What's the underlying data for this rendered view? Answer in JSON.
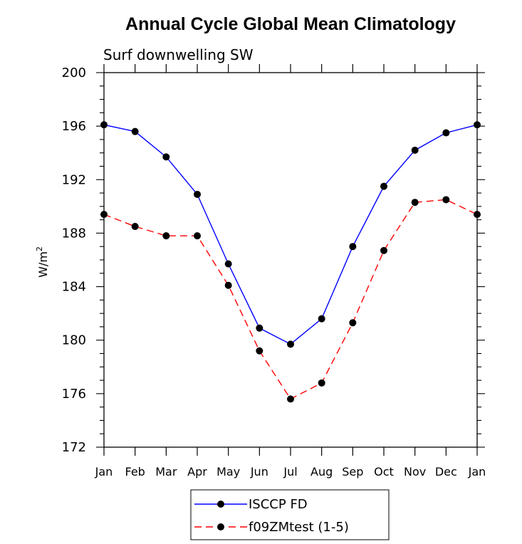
{
  "chart_data": {
    "type": "line",
    "title": "Annual Cycle Global Mean Climatology",
    "subtitle": "Surf downwelling SW",
    "ylabel": "W/m",
    "ylabel_sup": "2",
    "xlabel": "",
    "categories": [
      "Jan",
      "Feb",
      "Mar",
      "Apr",
      "May",
      "Jun",
      "Jul",
      "Aug",
      "Sep",
      "Oct",
      "Nov",
      "Dec",
      "Jan"
    ],
    "ylim": [
      172,
      200
    ],
    "yticks": [
      172,
      176,
      180,
      184,
      188,
      192,
      196,
      200
    ],
    "grid": false,
    "legend_position": "bottom-center",
    "series": [
      {
        "name": "ISCCP FD",
        "color": "#0000ff",
        "line_style": "solid",
        "marker": "filled-circle",
        "values": [
          196.1,
          195.6,
          193.7,
          190.9,
          185.7,
          180.9,
          179.7,
          181.6,
          187.0,
          191.5,
          194.2,
          195.5,
          196.1
        ]
      },
      {
        "name": "f09ZMtest (1-5)",
        "color": "#ff0000",
        "line_style": "dashed",
        "marker": "filled-circle",
        "values": [
          189.4,
          188.5,
          187.8,
          187.8,
          184.1,
          179.2,
          175.6,
          176.8,
          181.3,
          186.7,
          190.3,
          190.5,
          189.4
        ]
      }
    ]
  }
}
